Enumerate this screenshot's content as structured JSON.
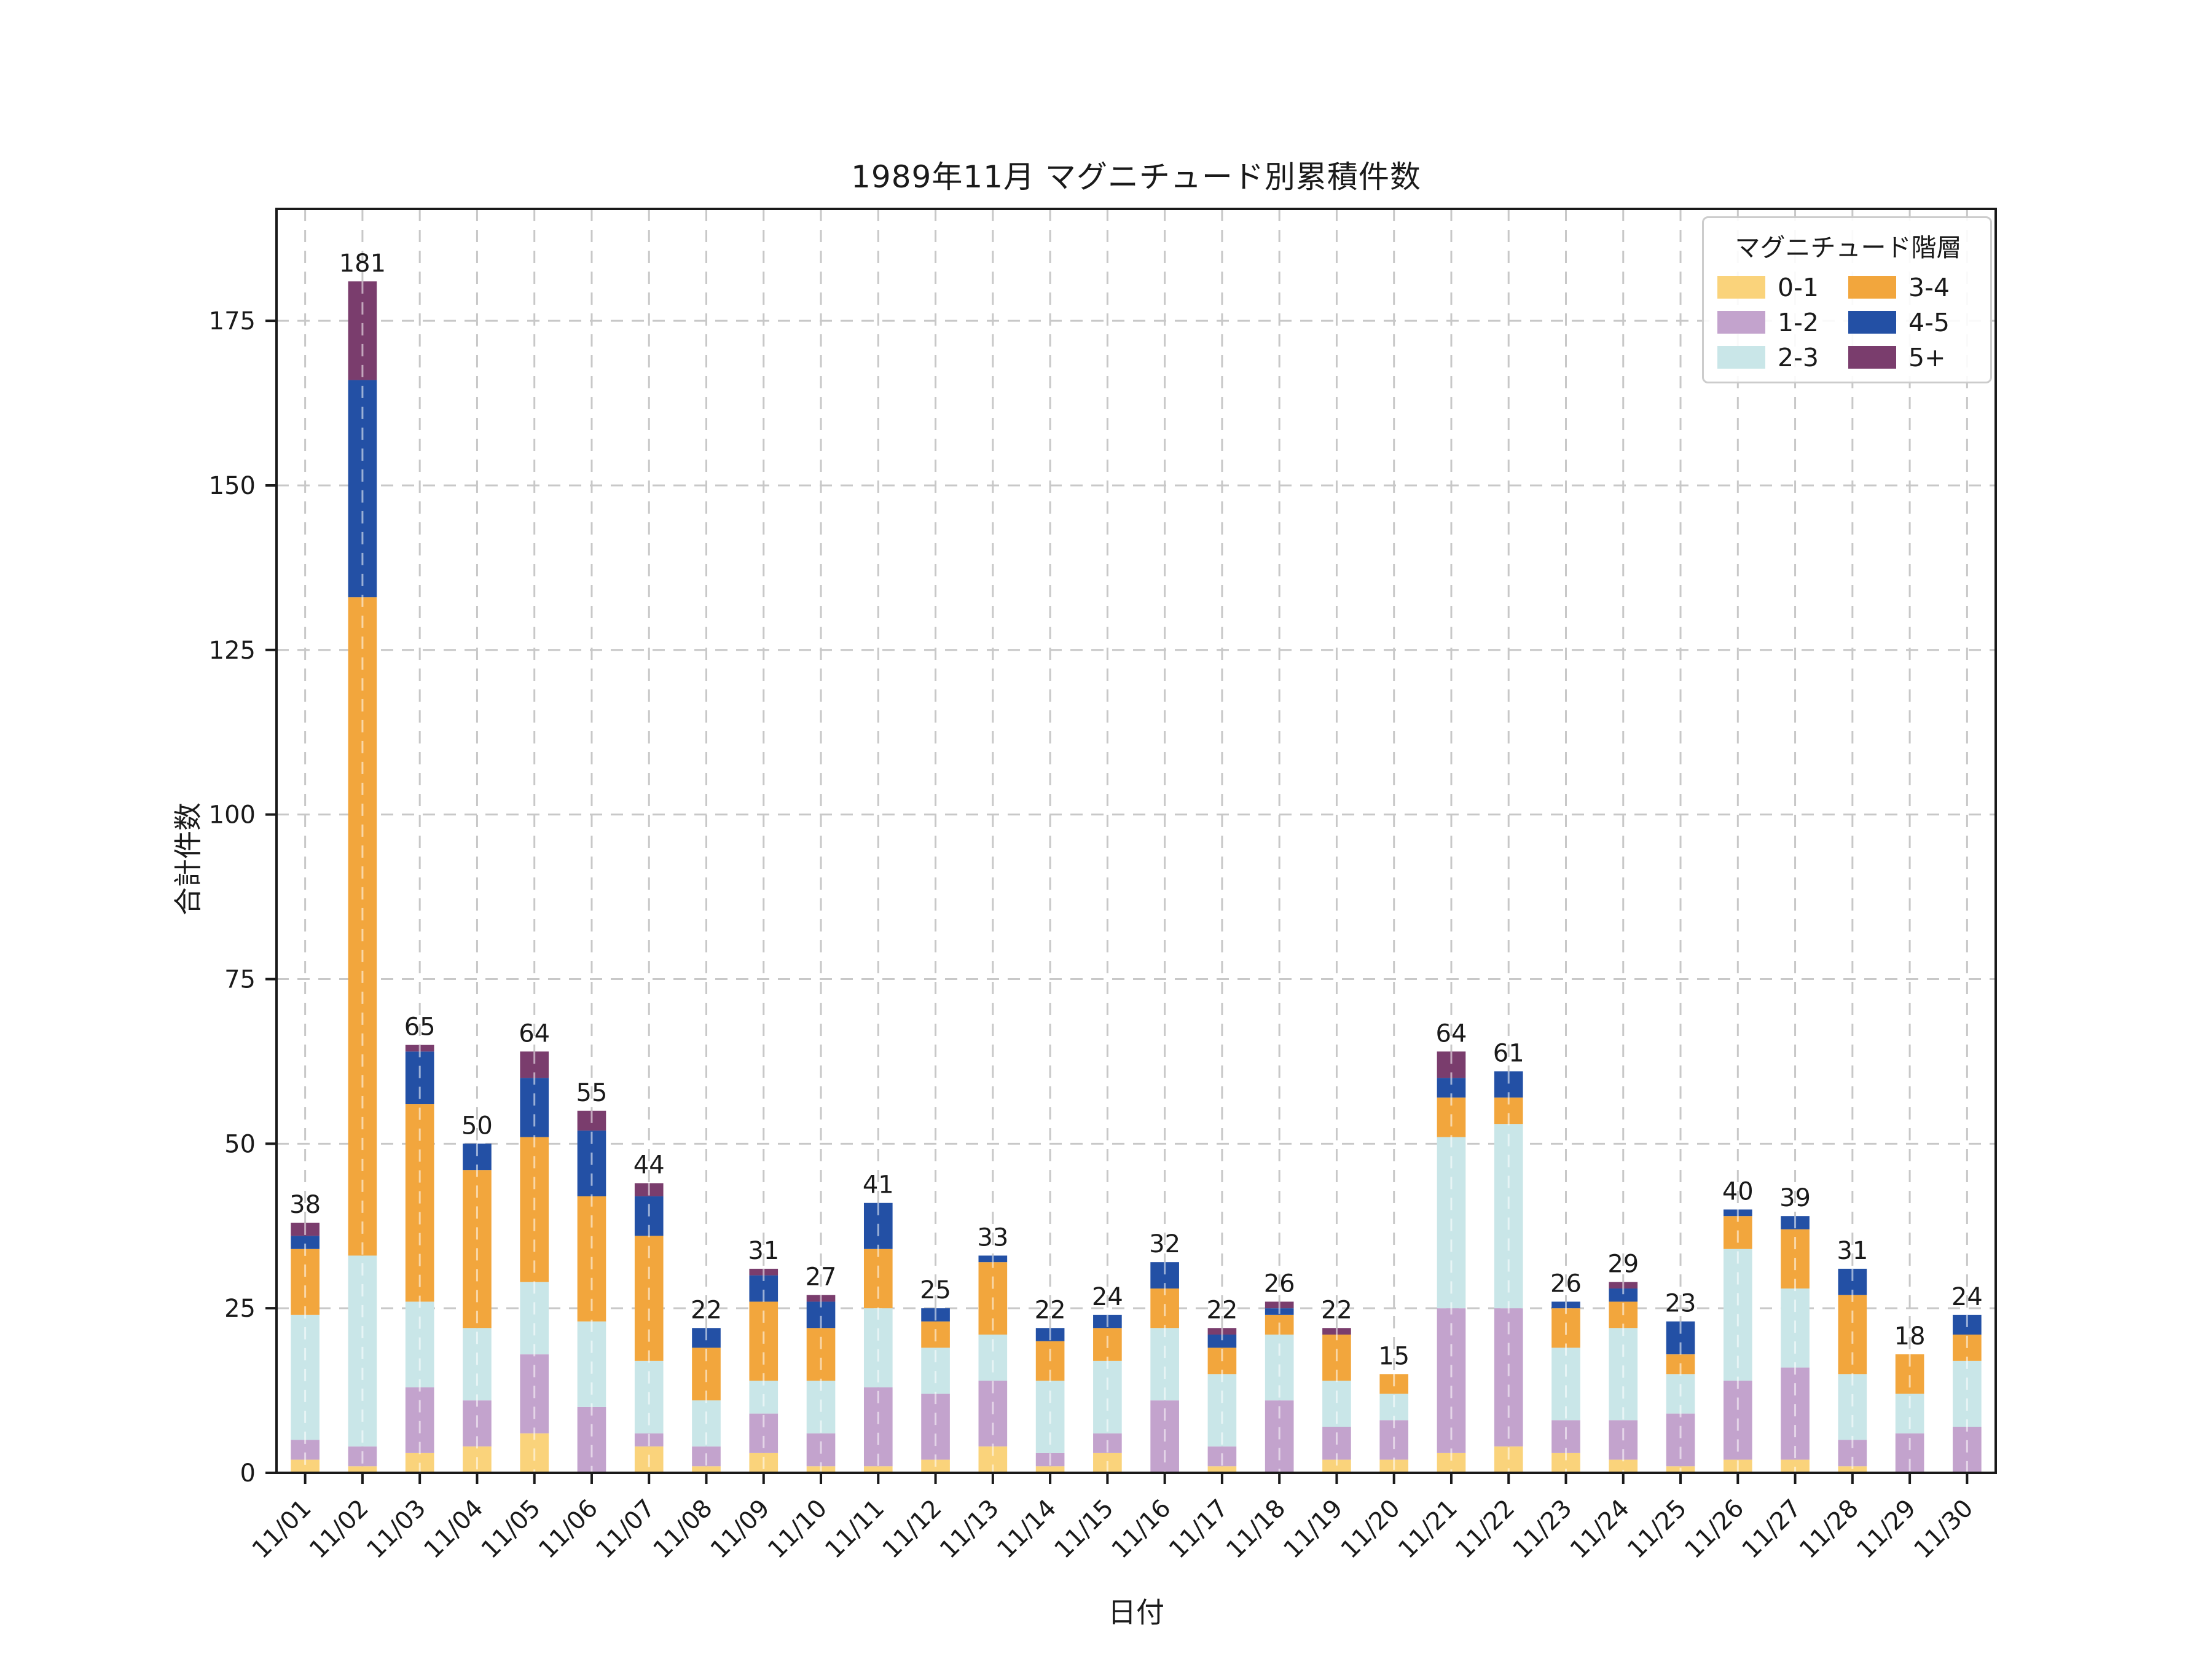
{
  "figure": {
    "title": "1989年11月 マグニチュード別累積件数",
    "background": "#ffffff",
    "text_color": "#1a1a1a",
    "grid_color": "#c8c8c8",
    "spine_color": "#1a1a1a"
  },
  "chart_data": {
    "type": "bar",
    "stacked": true,
    "title": "1989年11月 マグニチュード別累積件数",
    "xlabel": "日付",
    "ylabel": "合計件数",
    "legend_title": "マグニチュード階層",
    "legend_position": "upper right",
    "grid": "on",
    "ylim": [
      0,
      192
    ],
    "yticks": [
      0,
      25,
      50,
      75,
      100,
      125,
      150,
      175
    ],
    "categories": [
      "11/01",
      "11/02",
      "11/03",
      "11/04",
      "11/05",
      "11/06",
      "11/07",
      "11/08",
      "11/09",
      "11/10",
      "11/11",
      "11/12",
      "11/13",
      "11/14",
      "11/15",
      "11/16",
      "11/17",
      "11/18",
      "11/19",
      "11/20",
      "11/21",
      "11/22",
      "11/23",
      "11/24",
      "11/25",
      "11/26",
      "11/27",
      "11/28",
      "11/29",
      "11/30"
    ],
    "series": [
      {
        "name": "0-1",
        "color": "#FAD37B",
        "values": [
          2,
          1,
          3,
          4,
          6,
          0,
          4,
          1,
          3,
          1,
          1,
          2,
          4,
          1,
          3,
          0,
          1,
          0,
          2,
          2,
          3,
          4,
          3,
          2,
          1,
          2,
          2,
          1,
          0,
          0
        ]
      },
      {
        "name": "1-2",
        "color": "#C3A3CD",
        "values": [
          3,
          3,
          10,
          7,
          12,
          10,
          2,
          3,
          6,
          5,
          12,
          10,
          10,
          2,
          3,
          11,
          3,
          11,
          5,
          6,
          22,
          21,
          5,
          6,
          8,
          12,
          14,
          4,
          6,
          7
        ]
      },
      {
        "name": "2-3",
        "color": "#C9E6E8",
        "values": [
          19,
          29,
          13,
          11,
          11,
          13,
          11,
          7,
          5,
          8,
          12,
          7,
          7,
          11,
          11,
          11,
          11,
          10,
          7,
          4,
          26,
          28,
          11,
          14,
          6,
          20,
          12,
          10,
          6,
          10
        ]
      },
      {
        "name": "3-4",
        "color": "#F2A63D",
        "values": [
          10,
          100,
          30,
          24,
          22,
          19,
          19,
          8,
          12,
          8,
          9,
          4,
          11,
          6,
          5,
          6,
          4,
          3,
          7,
          3,
          6,
          4,
          6,
          4,
          3,
          5,
          9,
          12,
          6,
          4
        ]
      },
      {
        "name": "4-5",
        "color": "#2350A5",
        "values": [
          2,
          33,
          8,
          4,
          9,
          10,
          6,
          3,
          4,
          4,
          7,
          2,
          1,
          2,
          2,
          4,
          2,
          1,
          0,
          0,
          3,
          4,
          1,
          2,
          5,
          1,
          2,
          4,
          0,
          3
        ]
      },
      {
        "name": "5+",
        "color": "#7A3D6D",
        "values": [
          2,
          15,
          1,
          0,
          4,
          3,
          2,
          0,
          1,
          1,
          0,
          0,
          0,
          0,
          0,
          0,
          1,
          1,
          1,
          0,
          4,
          0,
          0,
          1,
          0,
          0,
          0,
          0,
          0,
          0
        ]
      }
    ],
    "totals": [
      38,
      181,
      65,
      50,
      64,
      55,
      44,
      22,
      31,
      27,
      41,
      25,
      33,
      22,
      24,
      32,
      22,
      26,
      22,
      15,
      64,
      61,
      26,
      29,
      23,
      40,
      39,
      31,
      18,
      24
    ]
  }
}
